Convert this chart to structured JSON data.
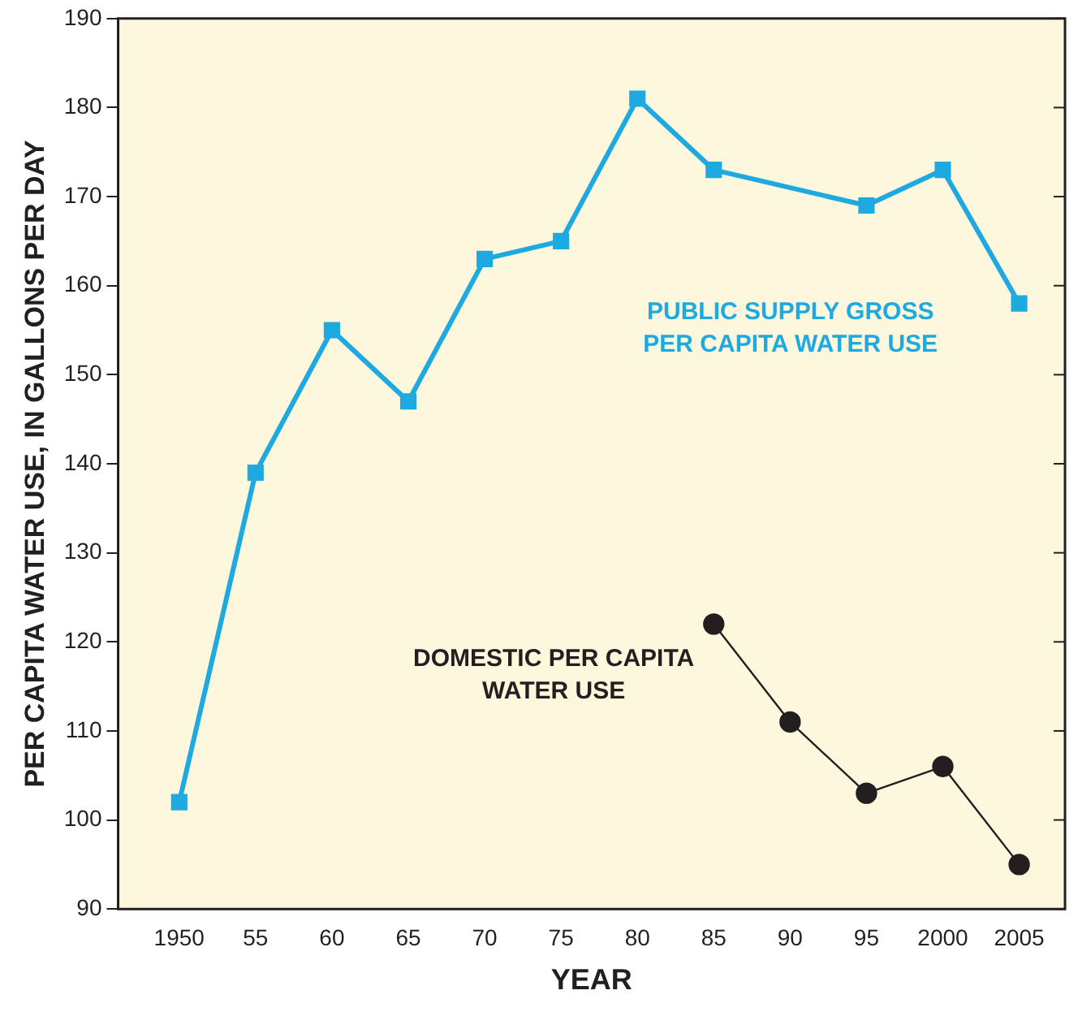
{
  "chart_data": {
    "type": "line",
    "xlabel": "YEAR",
    "ylabel": "PER CAPITA WATER USE, IN GALLONS PER DAY",
    "xlim": [
      1946,
      2008
    ],
    "xticks": [
      {
        "value": 1950,
        "label": "1950"
      },
      {
        "value": 1955,
        "label": "55"
      },
      {
        "value": 1960,
        "label": "60"
      },
      {
        "value": 1965,
        "label": "65"
      },
      {
        "value": 1970,
        "label": "70"
      },
      {
        "value": 1975,
        "label": "75"
      },
      {
        "value": 1980,
        "label": "80"
      },
      {
        "value": 1985,
        "label": "85"
      },
      {
        "value": 1990,
        "label": "90"
      },
      {
        "value": 1995,
        "label": "95"
      },
      {
        "value": 2000,
        "label": "2000"
      },
      {
        "value": 2005,
        "label": "2005"
      }
    ],
    "ylim": [
      90,
      190
    ],
    "yticks": [
      90,
      100,
      110,
      120,
      130,
      140,
      150,
      160,
      170,
      180,
      190
    ],
    "grid": false,
    "legend": false,
    "series": [
      {
        "name": "PUBLIC SUPPLY GROSS\nPER CAPITA WATER USE",
        "color": "#1ea9e1",
        "marker": "square",
        "x": [
          1950,
          1955,
          1960,
          1965,
          1970,
          1975,
          1980,
          1985,
          1995,
          2000,
          2005
        ],
        "values": [
          102,
          139,
          155,
          147,
          163,
          165,
          181,
          173,
          169,
          173,
          158
        ]
      },
      {
        "name": "DOMESTIC PER CAPITA\nWATER USE",
        "color": "#231f20",
        "marker": "circle",
        "x": [
          1985,
          1990,
          1995,
          2000,
          2005
        ],
        "values": [
          122,
          111,
          103,
          106,
          95
        ]
      }
    ]
  }
}
